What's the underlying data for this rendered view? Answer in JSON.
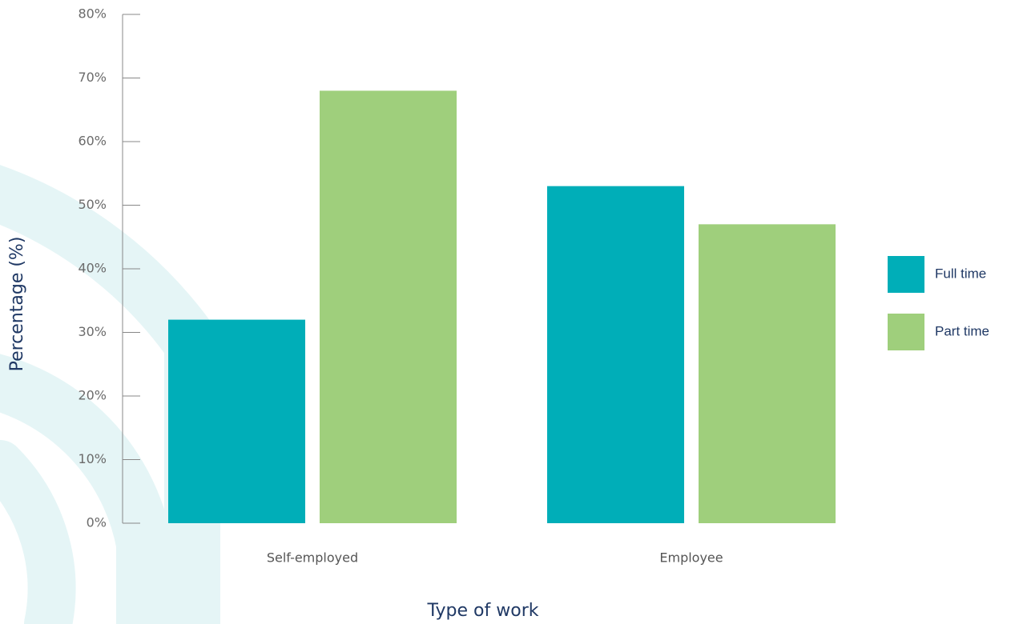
{
  "chart_data": {
    "type": "bar",
    "x_label": "Type of work",
    "y_label": "Percentage  (%)",
    "categories": [
      "Self-employed",
      "Employee"
    ],
    "series": [
      {
        "name": "Full time",
        "color": "#00aeb8",
        "values": [
          32,
          53
        ]
      },
      {
        "name": "Part time",
        "color": "#9fcf7c",
        "values": [
          68,
          47
        ]
      }
    ],
    "ylim": [
      0,
      80
    ],
    "yticks": [
      {
        "value": 0,
        "label": "0%"
      },
      {
        "value": 10,
        "label": "10%"
      },
      {
        "value": 20,
        "label": "20%"
      },
      {
        "value": 30,
        "label": "30%"
      },
      {
        "value": 40,
        "label": "40%"
      },
      {
        "value": 50,
        "label": "50%"
      },
      {
        "value": 60,
        "label": "60%"
      },
      {
        "value": 70,
        "label": "70%"
      },
      {
        "value": 80,
        "label": "80%"
      }
    ],
    "legend": "right"
  }
}
